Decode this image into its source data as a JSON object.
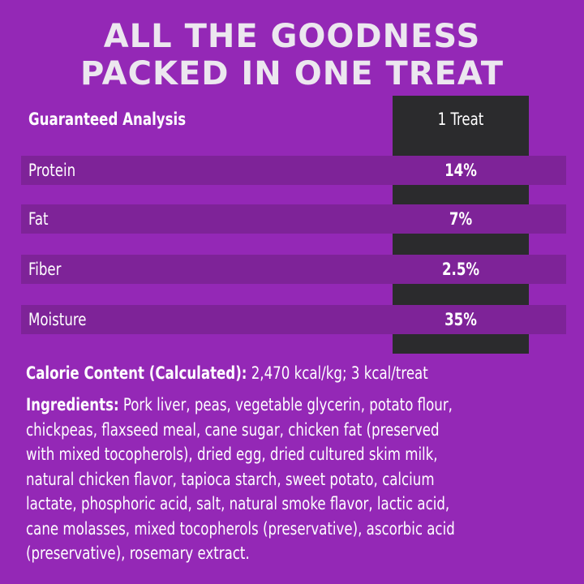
{
  "headline": {
    "line1": "ALL THE GOODNESS",
    "line2": "PACKED IN ONE TREAT"
  },
  "analysis": {
    "header_label": "Guaranteed Analysis",
    "header_value": "1 Treat",
    "rows": [
      {
        "label": "Protein",
        "value": "14%"
      },
      {
        "label": "Fat",
        "value": "7%"
      },
      {
        "label": "Fiber",
        "value": "2.5%"
      },
      {
        "label": "Moisture",
        "value": "35%"
      }
    ]
  },
  "calorie": {
    "label": "Calorie Content (Calculated):",
    "value": "2,470 kcal/kg; 3 kcal/treat"
  },
  "ingredients": {
    "label": "Ingredients:",
    "lines": [
      "Pork liver, peas, vegetable glycerin, potato flour,",
      "chickpeas, flaxseed meal, cane sugar, chicken fat (preserved",
      "with mixed tocopherols), dried egg, dried cultured skim milk,",
      "natural chicken flavor, tapioca starch, sweet potato, calcium",
      "lactate, phosphoric acid, salt, natural smoke flavor, lactic acid,",
      "cane molasses, mixed tocopherols (preservative), ascorbic acid",
      "(preservative), rosemary extract."
    ]
  },
  "colors": {
    "background": "#9428b6",
    "stripe": "#7e2398",
    "value_column": "#2b2b2d",
    "headline_text": "#ece7ef",
    "text": "#ffffff"
  }
}
